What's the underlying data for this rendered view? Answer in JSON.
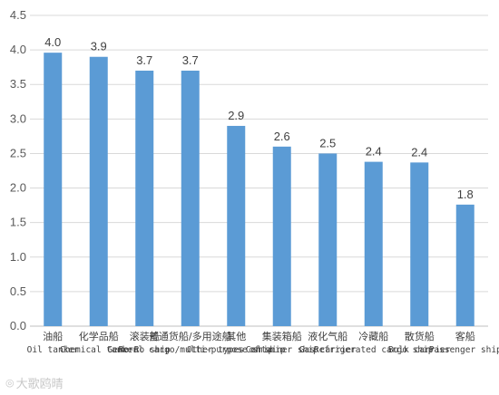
{
  "chart_data": {
    "type": "bar",
    "title": "",
    "xlabel": "",
    "ylabel": "",
    "ylim": [
      0,
      4.5
    ],
    "yticks": [
      "0.0",
      "0.5",
      "1.0",
      "1.5",
      "2.0",
      "2.5",
      "3.0",
      "3.5",
      "4.0",
      "4.5"
    ],
    "grid": true,
    "legend": "none",
    "bar_color": "#5b9bd5",
    "categories": [
      {
        "cn": "油船",
        "en": "Oil tanker"
      },
      {
        "cn": "化学品船",
        "en": "Chemical tanker"
      },
      {
        "cn": "滚装船",
        "en": "Ro-Ro ship"
      },
      {
        "cn": "普通货船/多用途船",
        "en": "General cargo/multi-purpose ship"
      },
      {
        "cn": "其他",
        "en": "Other types of ship"
      },
      {
        "cn": "集装箱船",
        "en": "Container ship"
      },
      {
        "cn": "液化气船",
        "en": "Gas carrier"
      },
      {
        "cn": "冷藏船",
        "en": "Refrigerated cargo ship"
      },
      {
        "cn": "散货船",
        "en": "Bulk carrier"
      },
      {
        "cn": "客船",
        "en": "Passenger ship"
      }
    ],
    "values": [
      3.96,
      3.9,
      3.7,
      3.7,
      2.9,
      2.6,
      2.5,
      2.38,
      2.37,
      1.76
    ],
    "data_labels": [
      "4.0",
      "3.9",
      "3.7",
      "3.7",
      "2.9",
      "2.6",
      "2.5",
      "2.4",
      "2.4",
      "1.8"
    ]
  },
  "watermark": {
    "icon": "camera-icon",
    "text": "大歌鸥晴"
  }
}
